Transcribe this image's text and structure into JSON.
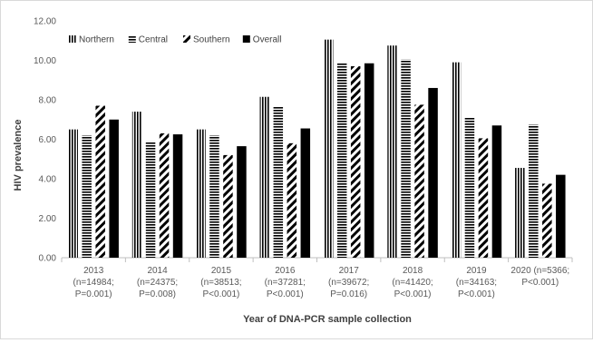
{
  "chart_data": {
    "type": "bar",
    "title": "",
    "xlabel": "Year of DNA-PCR sample collection",
    "ylabel": "HIV prevalence",
    "ylim": [
      0,
      12
    ],
    "yticks": [
      "0.00",
      "2.00",
      "4.00",
      "6.00",
      "8.00",
      "10.00",
      "12.00"
    ],
    "grid": false,
    "legend_position": "top-left",
    "categories": [
      [
        "2013",
        "(n=14984;",
        "P=0.001)"
      ],
      [
        "2014",
        "(n=24375;",
        "P=0.008)"
      ],
      [
        "2015",
        "(n=38513;",
        "P<0.001)"
      ],
      [
        "2016",
        "(n=37281;",
        "P<0.001)"
      ],
      [
        "2017",
        "(n=39672;",
        "P=0.016)"
      ],
      [
        "2018",
        "(n=41420;",
        "P<0.001)"
      ],
      [
        "2019",
        "(n=34163;",
        "P<0.001)"
      ],
      [
        "2020 (n=5366;",
        "P<0.001)"
      ]
    ],
    "series": [
      {
        "name": "Northern",
        "pattern": "vertical-lines",
        "values": [
          6.5,
          7.4,
          6.5,
          8.15,
          11.05,
          10.75,
          9.9,
          4.55
        ]
      },
      {
        "name": "Central",
        "pattern": "horizontal-lines",
        "values": [
          6.2,
          5.9,
          6.2,
          7.65,
          9.85,
          10.05,
          7.1,
          6.75
        ]
      },
      {
        "name": "Southern",
        "pattern": "diagonal-lines",
        "values": [
          7.7,
          6.3,
          5.2,
          5.8,
          9.7,
          7.75,
          6.05,
          3.75
        ]
      },
      {
        "name": "Overall",
        "pattern": "solid",
        "values": [
          7.0,
          6.25,
          5.65,
          6.55,
          9.85,
          8.6,
          6.7,
          4.2
        ]
      }
    ],
    "colors": {
      "bar": "#000000",
      "axis": "#bfbfbf",
      "text": "#595959"
    }
  }
}
